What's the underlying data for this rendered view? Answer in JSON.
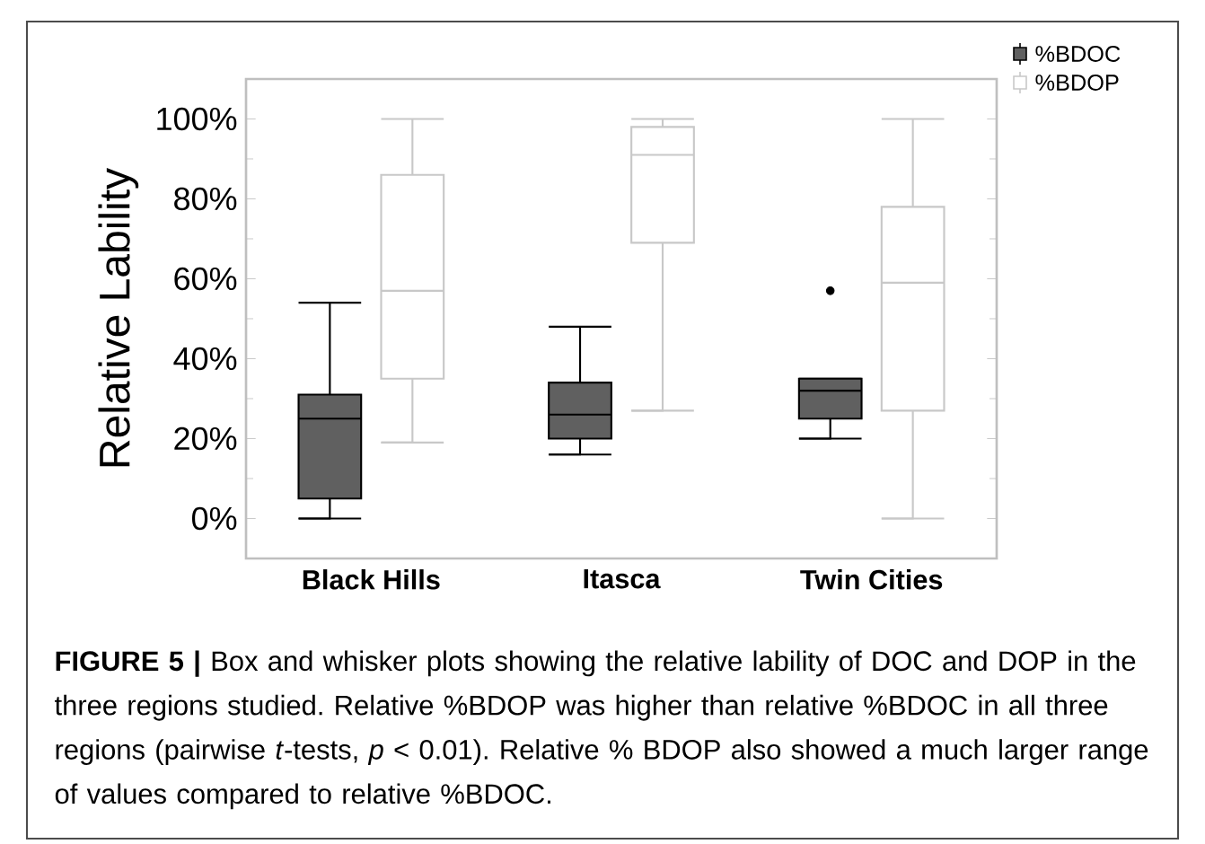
{
  "chart_data": {
    "type": "box",
    "ylabel": "Relative Lability",
    "categories": [
      "Black Hills",
      "Itasca",
      "Twin Cities"
    ],
    "series": [
      {
        "name": "%BDOC",
        "color": "#606060",
        "boxes": [
          {
            "low": 0,
            "q1": 5,
            "median": 25,
            "q3": 31,
            "high": 54
          },
          {
            "low": 16,
            "q1": 20,
            "median": 26,
            "q3": 34,
            "high": 48
          },
          {
            "low": 20,
            "q1": 25,
            "median": 32,
            "q3": 35,
            "high": 35,
            "outliers": [
              57
            ]
          }
        ]
      },
      {
        "name": "%BDOP",
        "color": "#c8c8c8",
        "boxes": [
          {
            "low": 19,
            "q1": 35,
            "median": 57,
            "q3": 86,
            "high": 100
          },
          {
            "low": 27,
            "q1": 69,
            "median": 91,
            "q3": 98,
            "high": 100
          },
          {
            "low": 0,
            "q1": 27,
            "median": 59,
            "q3": 78,
            "high": 100
          }
        ]
      }
    ],
    "ylim": [
      -10,
      110
    ],
    "yticks": [
      {
        "value": 0,
        "label": "0%"
      },
      {
        "value": 20,
        "label": "20%"
      },
      {
        "value": 40,
        "label": "40%"
      },
      {
        "value": 60,
        "label": "60%"
      },
      {
        "value": 80,
        "label": "80%"
      },
      {
        "value": 100,
        "label": "100%"
      }
    ],
    "legend": "top right",
    "annotations": [
      "**FIGURE 5 |** Box and whisker plots showing the relative lability of DOC and DOP in the three regions studied. Relative %BDOP was higher than relative %BDOC in all three regions (pairwise *t*-tests, *p* < 0.01). Relative % BDOP also showed a much larger range of values compared to relative %BDOC."
    ]
  }
}
